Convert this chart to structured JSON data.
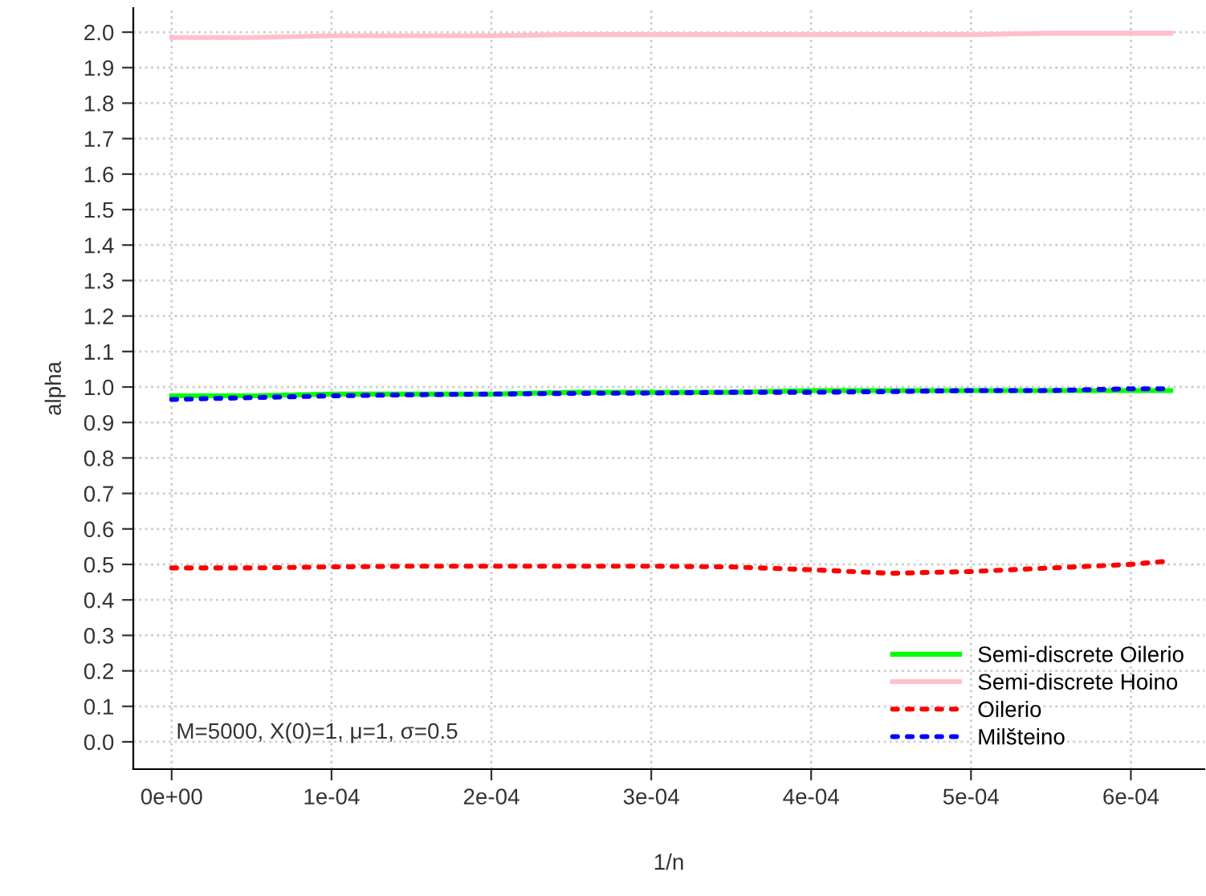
{
  "chart_data": {
    "type": "line",
    "xlabel": "1/n",
    "ylabel": "alpha",
    "annotations": [
      "M=5000, X(0)=1, μ=1, σ=0.5"
    ],
    "xlim": [
      -2.4e-05,
      0.000646
    ],
    "ylim": [
      -0.077,
      2.068
    ],
    "xticks": [
      {
        "value": 0,
        "label": "0e+00"
      },
      {
        "value": 0.0001,
        "label": "1e-04"
      },
      {
        "value": 0.0002,
        "label": "2e-04"
      },
      {
        "value": 0.0003,
        "label": "3e-04"
      },
      {
        "value": 0.0004,
        "label": "4e-04"
      },
      {
        "value": 0.0005,
        "label": "5e-04"
      },
      {
        "value": 0.0006,
        "label": "6e-04"
      }
    ],
    "yticks": [
      {
        "value": 0,
        "label": "0.0"
      },
      0.1,
      0.2,
      0.3,
      0.4,
      0.5,
      0.6,
      0.7,
      0.8,
      0.9,
      {
        "value": 1,
        "label": "1.0"
      },
      1.1,
      1.2,
      1.3,
      1.4,
      1.5,
      1.6,
      1.7,
      1.8,
      1.9,
      {
        "value": 2,
        "label": "2.0"
      }
    ],
    "grid": true,
    "legend": "bottom right",
    "x": [
      0,
      5e-05,
      0.0001,
      0.00015,
      0.0002,
      0.00025,
      0.0003,
      0.00035,
      0.0004,
      0.00045,
      0.0005,
      0.00055,
      0.0006,
      0.000625
    ],
    "series": [
      {
        "name": "Semi-discrete Oilerio",
        "color": "#00ff00",
        "line_style": "solid",
        "values": [
          0.975,
          0.975,
          0.98,
          0.98,
          0.98,
          0.985,
          0.985,
          0.985,
          0.99,
          0.99,
          0.99,
          0.99,
          0.99,
          0.99
        ]
      },
      {
        "name": "Semi-discrete Hoino",
        "color": "#ffc0cb",
        "line_style": "solid",
        "values": [
          1.985,
          1.985,
          1.99,
          1.99,
          1.99,
          1.993,
          1.993,
          1.993,
          1.993,
          1.993,
          1.993,
          1.997,
          1.997,
          1.997
        ]
      },
      {
        "name": "Oilerio",
        "color": "#ff0000",
        "line_style": "dotted",
        "values": [
          0.49,
          0.49,
          0.493,
          0.495,
          0.495,
          0.495,
          0.495,
          0.493,
          0.485,
          0.475,
          0.48,
          0.49,
          0.5,
          0.51
        ]
      },
      {
        "name": "Milšteino",
        "color": "#0000ff",
        "line_style": "dotted",
        "values": [
          0.965,
          0.97,
          0.975,
          0.978,
          0.98,
          0.982,
          0.983,
          0.985,
          0.985,
          0.987,
          0.99,
          0.99,
          0.995,
          0.995
        ]
      }
    ]
  }
}
